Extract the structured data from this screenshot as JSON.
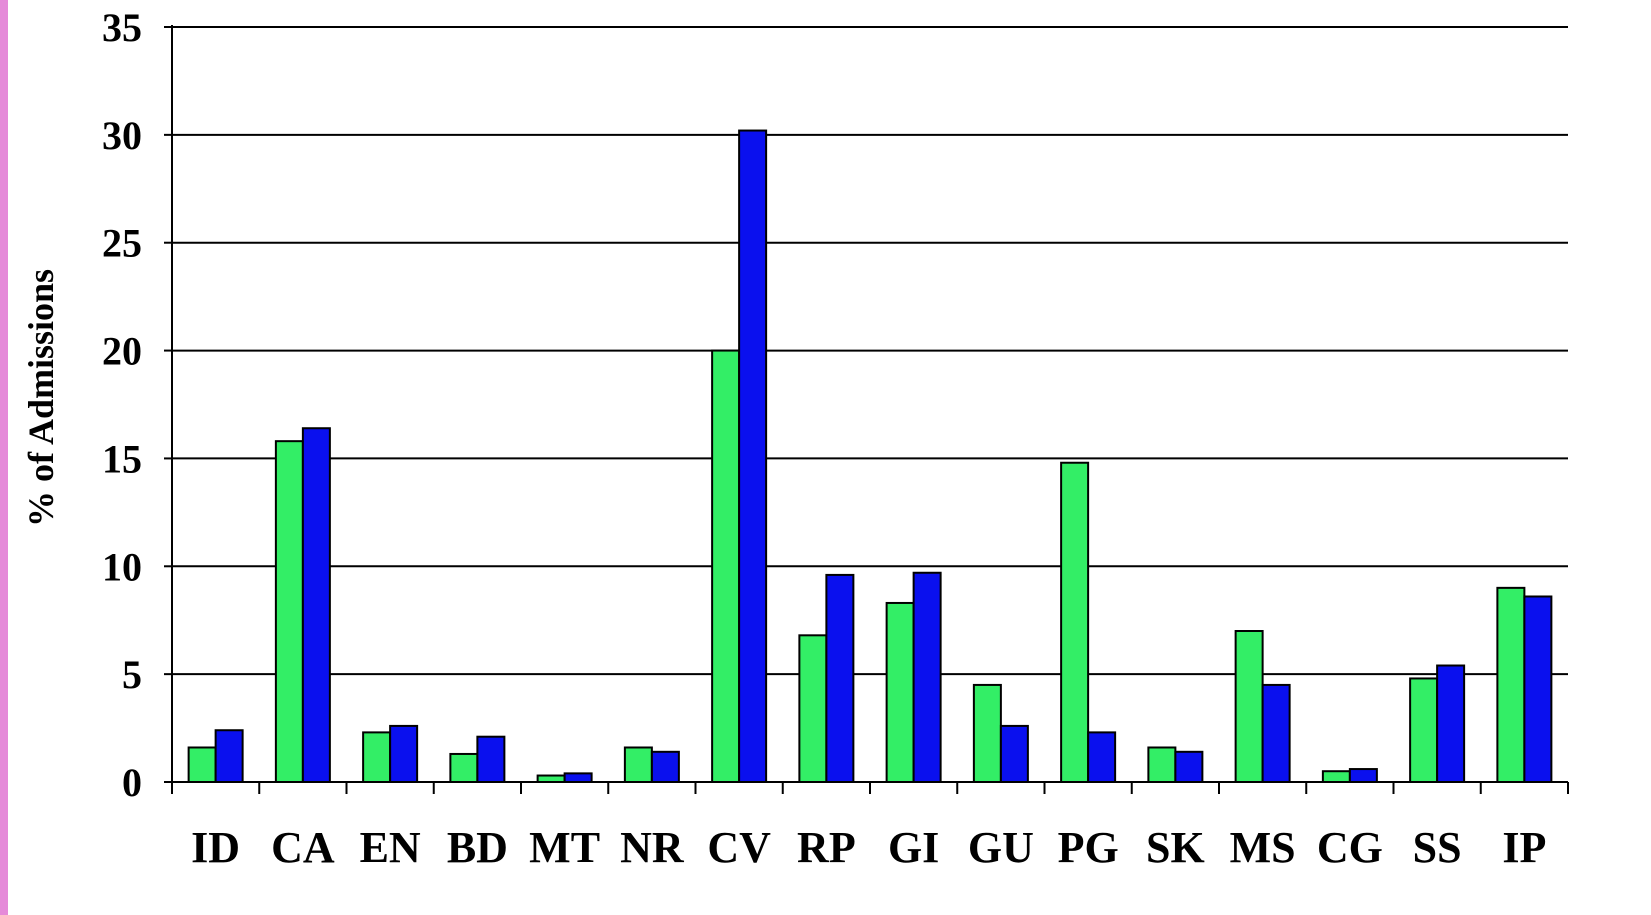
{
  "chart_data": {
    "type": "bar",
    "title": "",
    "xlabel": "",
    "ylabel": "% of Admissions",
    "ylim": [
      0,
      35
    ],
    "yticks": [
      0,
      5,
      10,
      15,
      20,
      25,
      30,
      35
    ],
    "grid": true,
    "legend": "none",
    "categories": [
      "ID",
      "CA",
      "EN",
      "BD",
      "MT",
      "NR",
      "CV",
      "RP",
      "GI",
      "GU",
      "PG",
      "SK",
      "MS",
      "CG",
      "SS",
      "IP"
    ],
    "series": [
      {
        "color": "#33ee66",
        "values": [
          1.6,
          15.8,
          2.3,
          1.3,
          0.3,
          1.6,
          20.0,
          6.8,
          8.3,
          4.5,
          14.8,
          1.6,
          7.0,
          0.5,
          4.8,
          9.0
        ]
      },
      {
        "color": "#0a10ee",
        "values": [
          2.4,
          16.4,
          2.6,
          2.1,
          0.4,
          1.4,
          30.2,
          9.6,
          9.7,
          2.6,
          2.3,
          1.4,
          4.5,
          0.6,
          5.4,
          8.6
        ]
      }
    ]
  }
}
